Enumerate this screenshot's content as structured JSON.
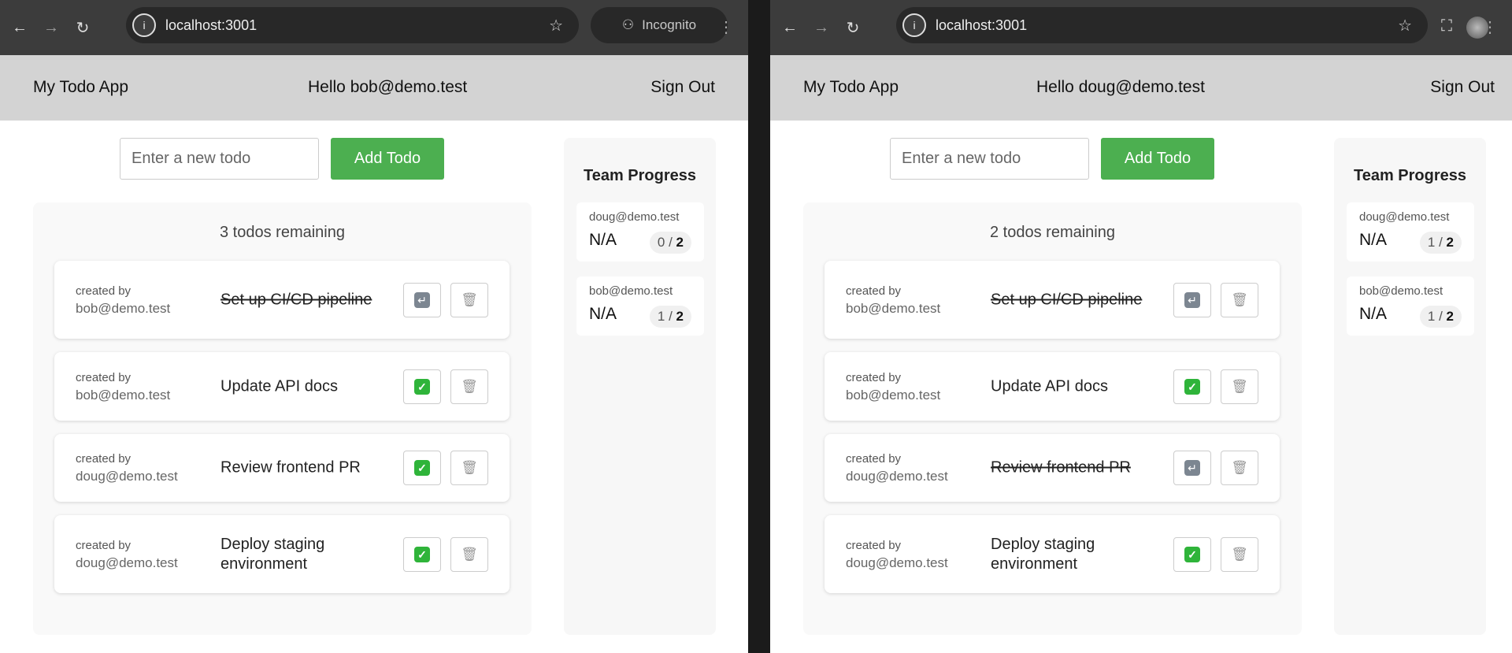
{
  "windows": [
    {
      "id": "left",
      "browser": {
        "url": "localhost:3001",
        "profile_label": "Incognito",
        "incognito": true
      },
      "header": {
        "app_name": "My Todo App",
        "greeting": "Hello bob@demo.test",
        "sign_out": "Sign Out"
      },
      "new_todo": {
        "placeholder": "Enter a new todo",
        "value": "",
        "add_label": "Add Todo"
      },
      "remaining": "3 todos remaining",
      "todos": [
        {
          "created_by_label": "created by",
          "creator": "bob@demo.test",
          "title": "Set up CI/CD pipeline",
          "done": true
        },
        {
          "created_by_label": "created by",
          "creator": "bob@demo.test",
          "title": "Update API docs",
          "done": false
        },
        {
          "created_by_label": "created by",
          "creator": "doug@demo.test",
          "title": "Review frontend PR",
          "done": false
        },
        {
          "created_by_label": "created by",
          "creator": "doug@demo.test",
          "title": "Deploy staging environment",
          "done": false
        }
      ],
      "team": {
        "title": "Team Progress",
        "members": [
          {
            "email": "doug@demo.test",
            "status": "N/A",
            "completed": "0",
            "total": "2"
          },
          {
            "email": "bob@demo.test",
            "status": "N/A",
            "completed": "1",
            "total": "2"
          }
        ]
      }
    },
    {
      "id": "right",
      "browser": {
        "url": "localhost:3001",
        "incognito": false
      },
      "header": {
        "app_name": "My Todo App",
        "greeting": "Hello doug@demo.test",
        "sign_out": "Sign Out"
      },
      "new_todo": {
        "placeholder": "Enter a new todo",
        "value": "",
        "add_label": "Add Todo"
      },
      "remaining": "2 todos remaining",
      "todos": [
        {
          "created_by_label": "created by",
          "creator": "bob@demo.test",
          "title": "Set up CI/CD pipeline",
          "done": true
        },
        {
          "created_by_label": "created by",
          "creator": "bob@demo.test",
          "title": "Update API docs",
          "done": false
        },
        {
          "created_by_label": "created by",
          "creator": "doug@demo.test",
          "title": "Review frontend PR",
          "done": true
        },
        {
          "created_by_label": "created by",
          "creator": "doug@demo.test",
          "title": "Deploy staging environment",
          "done": false
        }
      ],
      "team": {
        "title": "Team Progress",
        "members": [
          {
            "email": "doug@demo.test",
            "status": "N/A",
            "completed": "1",
            "total": "2"
          },
          {
            "email": "bob@demo.test",
            "status": "N/A",
            "completed": "1",
            "total": "2"
          }
        ]
      }
    }
  ],
  "icons": {
    "back": "arrow-left",
    "forward": "arrow-right",
    "reload": "reload",
    "info": "info",
    "bookmark": "star",
    "incognito": "incognito-hat",
    "extensions": "puzzle",
    "menu": "kebab",
    "complete": "check-box",
    "undo": "return-arrow",
    "delete": "wastebasket"
  },
  "colors": {
    "accent": "#4caf50",
    "header_bg": "#d3d3d3",
    "chrome_bg": "#3c3c3c"
  }
}
